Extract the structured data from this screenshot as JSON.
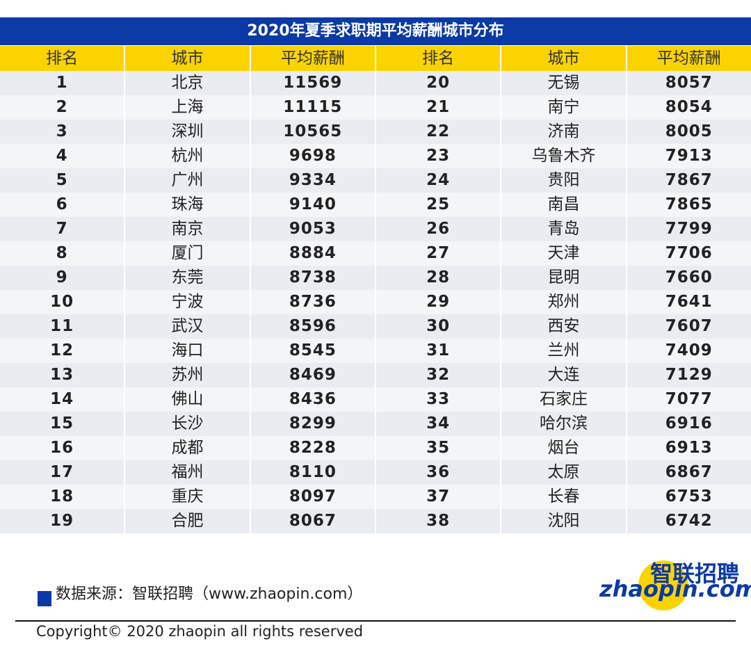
{
  "table": {
    "title": "2020年夏季求职期平均薪酬城市分布",
    "header": [
      "排名",
      "城市",
      "平均薪酬",
      "排名",
      "城市",
      "平均薪酬"
    ],
    "rows": [
      [
        1,
        "北京",
        11569,
        20,
        "无锡",
        8057
      ],
      [
        2,
        "上海",
        11115,
        21,
        "南宁",
        8054
      ],
      [
        3,
        "深圳",
        10565,
        22,
        "济南",
        8005
      ],
      [
        4,
        "杭州",
        9698,
        23,
        "乌鲁木齐",
        7913
      ],
      [
        5,
        "广州",
        9334,
        24,
        "贵阳",
        7867
      ],
      [
        6,
        "珠海",
        9140,
        25,
        "南昌",
        7865
      ],
      [
        7,
        "南京",
        9053,
        26,
        "青岛",
        7799
      ],
      [
        8,
        "厦门",
        8884,
        27,
        "天津",
        7706
      ],
      [
        9,
        "东莞",
        8738,
        28,
        "昆明",
        7660
      ],
      [
        10,
        "宁波",
        8736,
        29,
        "郑州",
        7641
      ],
      [
        11,
        "武汉",
        8596,
        30,
        "西安",
        7607
      ],
      [
        12,
        "海口",
        8545,
        31,
        "兰州",
        7409
      ],
      [
        13,
        "苏州",
        8469,
        32,
        "大连",
        7129
      ],
      [
        14,
        "佛山",
        8436,
        33,
        "石家庄",
        7077
      ],
      [
        15,
        "长沙",
        8299,
        34,
        "哈尔滨",
        6916
      ],
      [
        16,
        "成都",
        8228,
        35,
        "烟台",
        6913
      ],
      [
        17,
        "福州",
        8110,
        36,
        "太原",
        6867
      ],
      [
        18,
        "重庆",
        8097,
        37,
        "长春",
        6753
      ],
      [
        19,
        "合肥",
        8067,
        38,
        "沈阳",
        6742
      ]
    ]
  },
  "footer": {
    "source": "数据来源：智联招聘（www.zhaopin.com）",
    "logo_cn": "智联招聘",
    "logo_en": "zhaopin.com",
    "copyright": "Copyright© 2020 zhaopin all rights reserved"
  }
}
